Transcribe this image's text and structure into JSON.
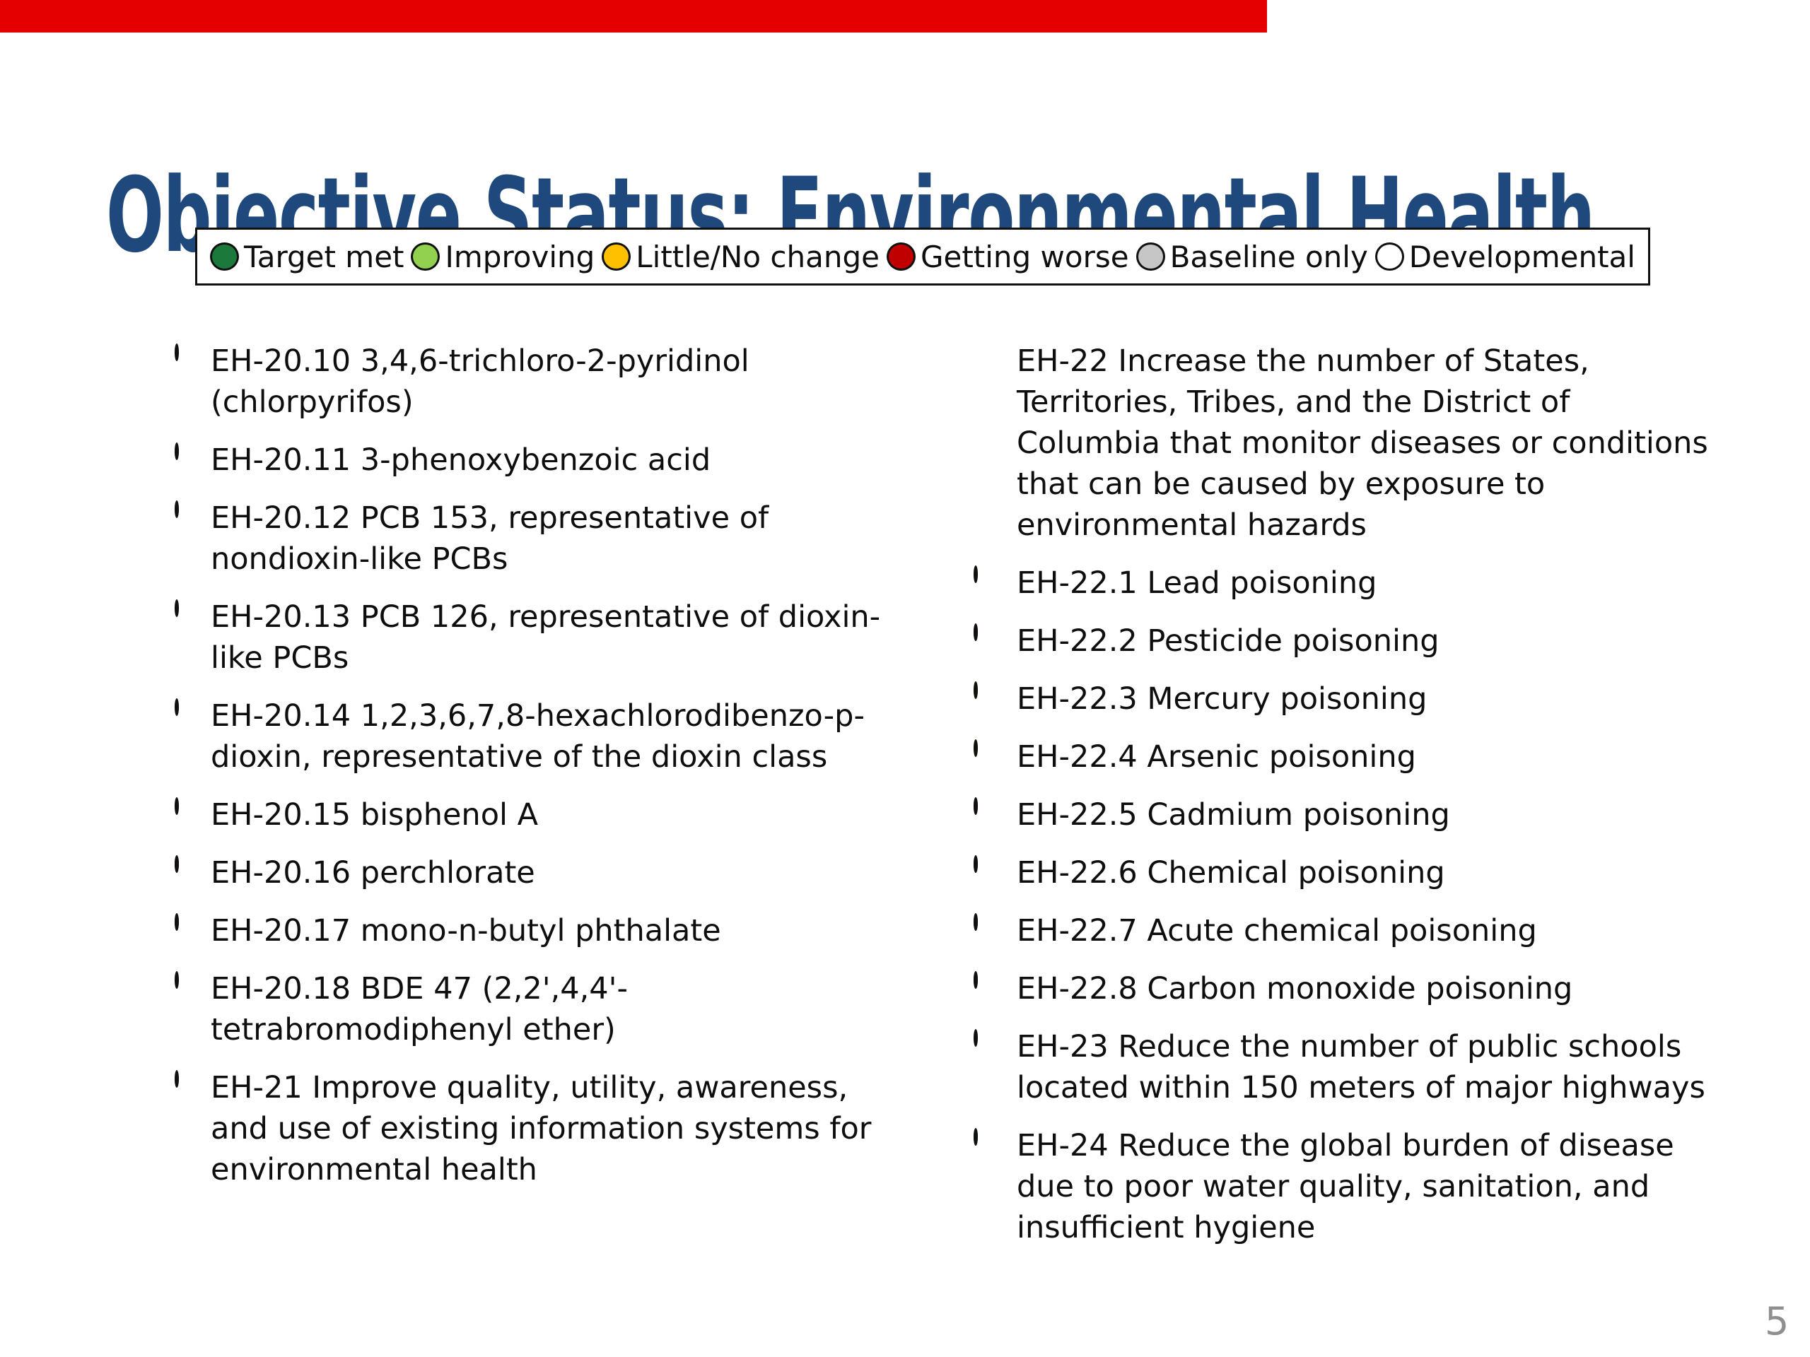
{
  "top_bar": {
    "color": "#e50000"
  },
  "title": {
    "text": "Objective Status: Environmental Health",
    "color": "#1F497D"
  },
  "status_colors": {
    "target_met": "#1b7a3b",
    "improving": "#92d050",
    "little_no_change": "#ffc000",
    "getting_worse": "#c00000",
    "baseline_only": "#c6c6c6",
    "developmental": "#ffffff"
  },
  "legend": {
    "items": [
      {
        "status": "target_met",
        "label": "Target met"
      },
      {
        "status": "improving",
        "label": "Improving"
      },
      {
        "status": "little_no_change",
        "label": "Little/No change"
      },
      {
        "status": "getting_worse",
        "label": "Getting worse"
      },
      {
        "status": "baseline_only",
        "label": "Baseline only"
      },
      {
        "status": "developmental",
        "label": "Developmental"
      }
    ]
  },
  "columns": {
    "left": [
      {
        "status": "baseline_only",
        "text": "EH-20.10 3,4,6-trichloro-2-pyridinol\n(chlorpyrifos)"
      },
      {
        "status": "baseline_only",
        "text": "EH-20.11 3-phenoxybenzoic acid"
      },
      {
        "status": "baseline_only",
        "text": "EH-20.12 PCB 153, representative of\nnondioxin-like PCBs"
      },
      {
        "status": "baseline_only",
        "text": "EH-20.13 PCB 126, representative of dioxin-\nlike PCBs"
      },
      {
        "status": "baseline_only",
        "text": "EH-20.14 1,2,3,6,7,8-hexachlorodibenzo-p-\ndioxin, representative of the dioxin class"
      },
      {
        "status": "improving",
        "text": "EH-20.15 bisphenol A"
      },
      {
        "status": "getting_worse",
        "text": "EH-20.16 perchlorate"
      },
      {
        "status": "target_met",
        "text": "EH-20.17 mono-n-butyl phthalate"
      },
      {
        "status": "baseline_only",
        "text": "EH-20.18 BDE 47 (2,2',4,4'-\ntetrabromodiphenyl ether)"
      },
      {
        "status": "baseline_only",
        "text": "EH-21 Improve quality, utility, awareness,\nand use of existing information systems for\nenvironmental health"
      }
    ],
    "right": [
      {
        "status": "none",
        "text": "EH-22 Increase the number of States,\nTerritories, Tribes, and the District of\nColumbia that monitor diseases or conditions\nthat can be caused by exposure to\nenvironmental hazards"
      },
      {
        "status": "improving",
        "text": "EH-22.1 Lead poisoning"
      },
      {
        "status": "getting_worse",
        "text": "EH-22.2 Pesticide poisoning"
      },
      {
        "status": "little_no_change",
        "text": "EH-22.3 Mercury poisoning"
      },
      {
        "status": "little_no_change",
        "text": "EH-22.4 Arsenic poisoning"
      },
      {
        "status": "getting_worse",
        "text": "EH-22.5 Cadmium poisoning"
      },
      {
        "status": "getting_worse",
        "text": "EH-22.6 Chemical poisoning"
      },
      {
        "status": "getting_worse",
        "text": "EH-22.7 Acute chemical poisoning"
      },
      {
        "status": "getting_worse",
        "text": "EH-22.8 Carbon monoxide poisoning"
      },
      {
        "status": "baseline_only",
        "text": "EH-23 Reduce the number of public schools\nlocated within 150 meters of major highways"
      },
      {
        "status": "target_met",
        "text": "EH-24 Reduce the global burden of disease\ndue to poor water quality, sanitation, and\ninsufficient hygiene"
      }
    ]
  },
  "page_number": "5"
}
